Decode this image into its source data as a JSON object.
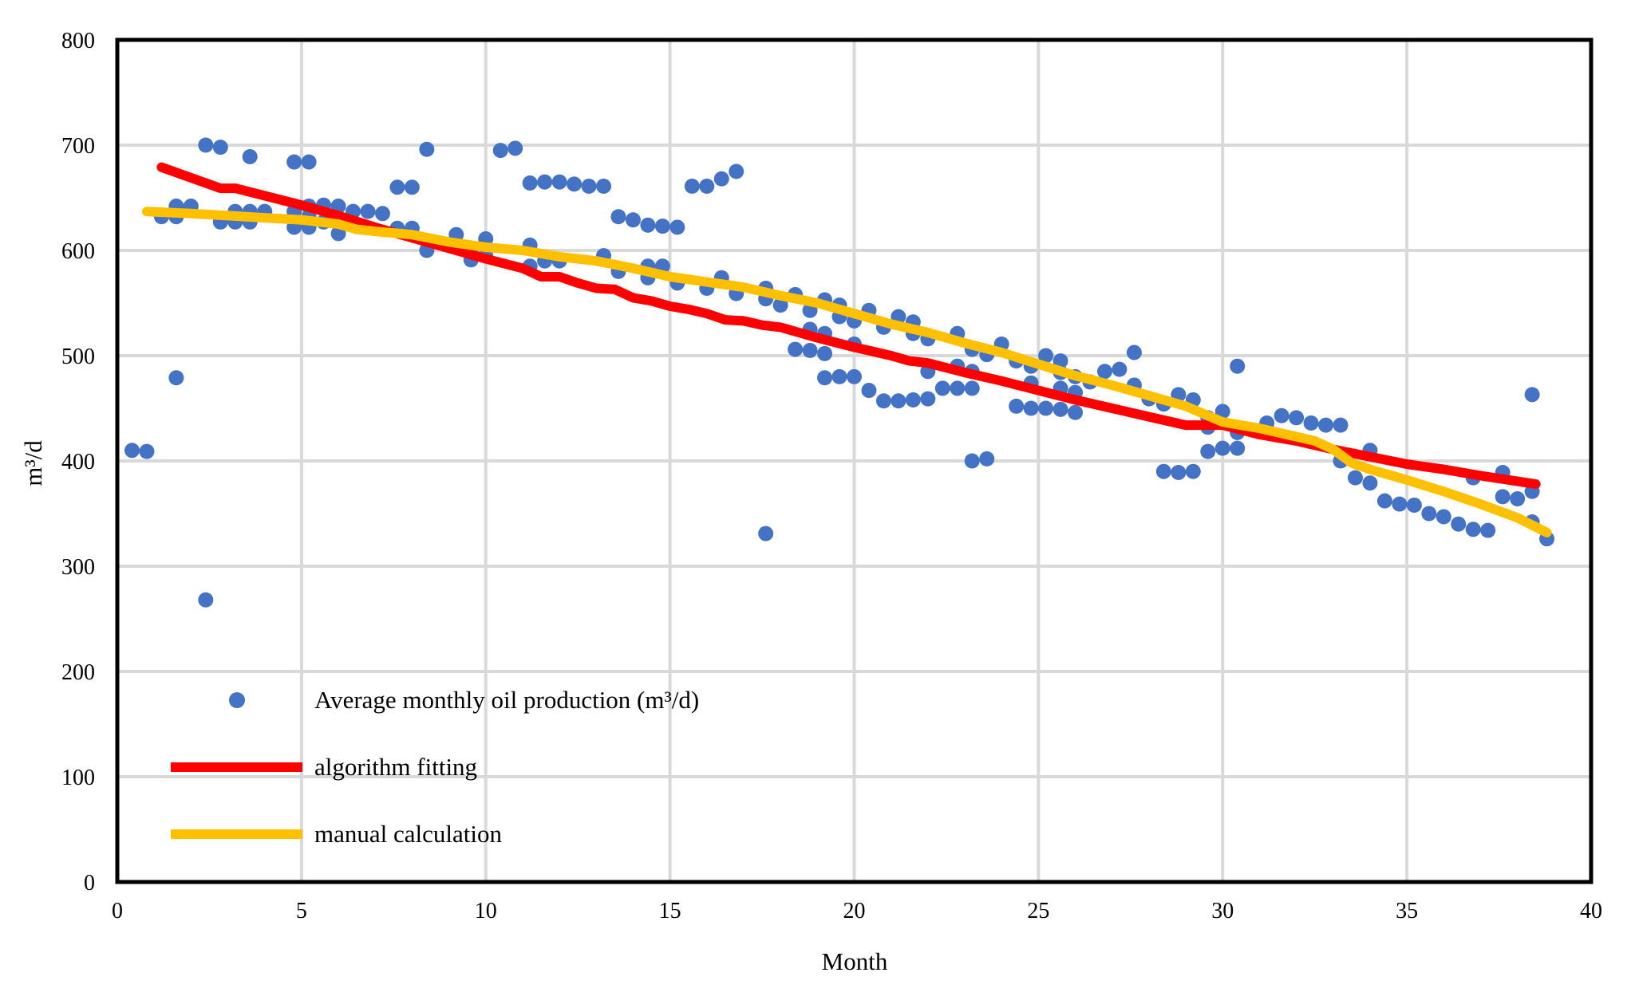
{
  "chart_data": {
    "type": "scatter",
    "title": "",
    "xlabel": "Month",
    "ylabel": "m³/d",
    "xlim": [
      0,
      40
    ],
    "ylim": [
      0,
      800
    ],
    "xticks": [
      0,
      5,
      10,
      15,
      20,
      25,
      30,
      35,
      40
    ],
    "yticks": [
      0,
      100,
      200,
      300,
      400,
      500,
      600,
      700,
      800
    ],
    "grid": true,
    "legend_position": "bottom-left",
    "colors": {
      "scatter": "#4472C4",
      "algorithm": "#FF0000",
      "manual": "#FFC000",
      "grid": "#D9D9D9",
      "axis": "#000000"
    },
    "series": [
      {
        "name": "Average monthly oil production (m³/d)",
        "kind": "scatter",
        "points": [
          [
            0.4,
            410
          ],
          [
            0.8,
            409
          ],
          [
            1.2,
            632
          ],
          [
            1.6,
            632
          ],
          [
            1.6,
            642
          ],
          [
            1.6,
            479
          ],
          [
            2.0,
            642
          ],
          [
            2.4,
            268
          ],
          [
            2.4,
            700
          ],
          [
            2.8,
            698
          ],
          [
            2.8,
            627
          ],
          [
            3.2,
            627
          ],
          [
            3.2,
            637
          ],
          [
            3.6,
            627
          ],
          [
            3.6,
            637
          ],
          [
            3.6,
            689
          ],
          [
            4.0,
            637
          ],
          [
            4.8,
            684
          ],
          [
            4.8,
            622
          ],
          [
            4.8,
            637
          ],
          [
            5.2,
            684
          ],
          [
            5.2,
            622
          ],
          [
            5.2,
            632
          ],
          [
            5.2,
            642
          ],
          [
            5.6,
            627
          ],
          [
            5.6,
            643
          ],
          [
            6.0,
            642
          ],
          [
            6.0,
            616
          ],
          [
            6.4,
            637
          ],
          [
            6.8,
            637
          ],
          [
            7.2,
            635
          ],
          [
            7.6,
            660
          ],
          [
            7.6,
            621
          ],
          [
            8.0,
            660
          ],
          [
            8.0,
            621
          ],
          [
            8.4,
            696
          ],
          [
            8.4,
            600
          ],
          [
            9.2,
            615
          ],
          [
            9.6,
            600
          ],
          [
            9.6,
            591
          ],
          [
            10.0,
            595
          ],
          [
            10.0,
            611
          ],
          [
            10.4,
            695
          ],
          [
            10.8,
            697
          ],
          [
            11.2,
            605
          ],
          [
            11.2,
            585
          ],
          [
            11.2,
            664
          ],
          [
            11.6,
            590
          ],
          [
            11.6,
            665
          ],
          [
            12.0,
            665
          ],
          [
            12.0,
            590
          ],
          [
            12.4,
            663
          ],
          [
            12.8,
            661
          ],
          [
            13.2,
            661
          ],
          [
            13.2,
            595
          ],
          [
            13.6,
            580
          ],
          [
            13.6,
            632
          ],
          [
            14.0,
            629
          ],
          [
            14.4,
            624
          ],
          [
            14.4,
            585
          ],
          [
            14.4,
            574
          ],
          [
            14.8,
            623
          ],
          [
            14.8,
            585
          ],
          [
            15.2,
            622
          ],
          [
            15.2,
            569
          ],
          [
            15.6,
            661
          ],
          [
            16.0,
            661
          ],
          [
            16.0,
            564
          ],
          [
            16.4,
            668
          ],
          [
            16.4,
            574
          ],
          [
            16.8,
            675
          ],
          [
            16.8,
            559
          ],
          [
            17.6,
            564
          ],
          [
            17.6,
            554
          ],
          [
            17.6,
            331
          ],
          [
            18.0,
            548
          ],
          [
            18.4,
            558
          ],
          [
            18.4,
            506
          ],
          [
            18.8,
            543
          ],
          [
            18.8,
            525
          ],
          [
            18.8,
            505
          ],
          [
            19.2,
            553
          ],
          [
            19.2,
            521
          ],
          [
            19.2,
            502
          ],
          [
            19.2,
            479
          ],
          [
            19.6,
            548
          ],
          [
            19.6,
            537
          ],
          [
            19.6,
            480
          ],
          [
            20.0,
            533
          ],
          [
            20.0,
            511
          ],
          [
            20.0,
            480
          ],
          [
            20.4,
            543
          ],
          [
            20.4,
            467
          ],
          [
            20.8,
            527
          ],
          [
            20.8,
            457
          ],
          [
            21.2,
            537
          ],
          [
            21.2,
            457
          ],
          [
            21.6,
            532
          ],
          [
            21.6,
            521
          ],
          [
            21.6,
            458
          ],
          [
            22.0,
            516
          ],
          [
            22.0,
            485
          ],
          [
            22.0,
            459
          ],
          [
            22.4,
            469
          ],
          [
            22.8,
            521
          ],
          [
            22.8,
            490
          ],
          [
            22.8,
            469
          ],
          [
            23.2,
            506
          ],
          [
            23.2,
            485
          ],
          [
            23.2,
            469
          ],
          [
            23.2,
            400
          ],
          [
            23.6,
            501
          ],
          [
            23.6,
            402
          ],
          [
            24.0,
            511
          ],
          [
            24.4,
            495
          ],
          [
            24.4,
            452
          ],
          [
            24.8,
            490
          ],
          [
            24.8,
            474
          ],
          [
            24.8,
            450
          ],
          [
            25.2,
            500
          ],
          [
            25.2,
            450
          ],
          [
            25.6,
            495
          ],
          [
            25.6,
            484
          ],
          [
            25.6,
            469
          ],
          [
            25.6,
            449
          ],
          [
            26.0,
            480
          ],
          [
            26.0,
            465
          ],
          [
            26.0,
            446
          ],
          [
            26.4,
            475
          ],
          [
            26.8,
            485
          ],
          [
            27.2,
            487
          ],
          [
            27.6,
            503
          ],
          [
            27.6,
            472
          ],
          [
            28.0,
            459
          ],
          [
            28.4,
            454
          ],
          [
            28.4,
            390
          ],
          [
            28.8,
            463
          ],
          [
            28.8,
            389
          ],
          [
            29.2,
            458
          ],
          [
            29.2,
            390
          ],
          [
            29.6,
            441
          ],
          [
            29.6,
            432
          ],
          [
            29.6,
            409
          ],
          [
            30.0,
            447
          ],
          [
            30.0,
            412
          ],
          [
            30.4,
            490
          ],
          [
            30.4,
            427
          ],
          [
            30.4,
            412
          ],
          [
            31.2,
            436
          ],
          [
            31.6,
            443
          ],
          [
            32.0,
            441
          ],
          [
            32.4,
            436
          ],
          [
            32.8,
            434
          ],
          [
            33.2,
            434
          ],
          [
            33.2,
            400
          ],
          [
            33.6,
            384
          ],
          [
            34.0,
            410
          ],
          [
            34.0,
            379
          ],
          [
            34.4,
            362
          ],
          [
            34.8,
            359
          ],
          [
            35.2,
            358
          ],
          [
            35.6,
            350
          ],
          [
            36.0,
            347
          ],
          [
            36.4,
            340
          ],
          [
            36.8,
            384
          ],
          [
            36.8,
            335
          ],
          [
            37.2,
            334
          ],
          [
            37.6,
            389
          ],
          [
            37.6,
            366
          ],
          [
            38.0,
            364
          ],
          [
            38.4,
            463
          ],
          [
            38.4,
            371
          ],
          [
            38.4,
            342
          ],
          [
            38.8,
            326
          ]
        ]
      },
      {
        "name": "algorithm fitting",
        "kind": "line",
        "points": [
          [
            1.2,
            679
          ],
          [
            2.8,
            659
          ],
          [
            3.2,
            659
          ],
          [
            4.0,
            652
          ],
          [
            5.0,
            643
          ],
          [
            6.0,
            633
          ],
          [
            7.0,
            622
          ],
          [
            8.0,
            612
          ],
          [
            9.0,
            602
          ],
          [
            10.0,
            592
          ],
          [
            11.0,
            583
          ],
          [
            11.5,
            575
          ],
          [
            12.0,
            575
          ],
          [
            12.5,
            569
          ],
          [
            13.0,
            564
          ],
          [
            13.5,
            563
          ],
          [
            14.0,
            555
          ],
          [
            14.5,
            552
          ],
          [
            15.0,
            547
          ],
          [
            15.5,
            544
          ],
          [
            16.0,
            540
          ],
          [
            16.5,
            534
          ],
          [
            17.0,
            533
          ],
          [
            17.5,
            529
          ],
          [
            18.0,
            527
          ],
          [
            19.0,
            517
          ],
          [
            20.0,
            508
          ],
          [
            21.0,
            500
          ],
          [
            21.5,
            495
          ],
          [
            22.0,
            493
          ],
          [
            23.0,
            484
          ],
          [
            24.0,
            476
          ],
          [
            25.0,
            467
          ],
          [
            26.0,
            458
          ],
          [
            27.0,
            450
          ],
          [
            28.0,
            442
          ],
          [
            29.0,
            434
          ],
          [
            30.0,
            434
          ],
          [
            31.0,
            425
          ],
          [
            32.0,
            419
          ],
          [
            33.0,
            411
          ],
          [
            34.0,
            404
          ],
          [
            35.0,
            397
          ],
          [
            36.0,
            392
          ],
          [
            37.0,
            386
          ],
          [
            38.5,
            378
          ]
        ]
      },
      {
        "name": "manual calculation",
        "kind": "line",
        "points": [
          [
            0.8,
            637
          ],
          [
            2.0,
            635
          ],
          [
            3.0,
            633
          ],
          [
            4.0,
            631
          ],
          [
            5.0,
            629
          ],
          [
            6.0,
            625
          ],
          [
            6.5,
            620
          ],
          [
            7.0,
            618
          ],
          [
            8.0,
            615
          ],
          [
            9.0,
            608
          ],
          [
            10.0,
            603
          ],
          [
            11.0,
            600
          ],
          [
            12.0,
            594
          ],
          [
            13.0,
            590
          ],
          [
            14.0,
            583
          ],
          [
            15.0,
            575
          ],
          [
            16.0,
            570
          ],
          [
            17.0,
            565
          ],
          [
            18.0,
            557
          ],
          [
            19.0,
            550
          ],
          [
            20.0,
            540
          ],
          [
            21.0,
            530
          ],
          [
            22.0,
            522
          ],
          [
            23.0,
            512
          ],
          [
            24.0,
            503
          ],
          [
            25.0,
            492
          ],
          [
            26.0,
            481
          ],
          [
            27.0,
            472
          ],
          [
            28.0,
            462
          ],
          [
            29.0,
            452
          ],
          [
            30.0,
            437
          ],
          [
            31.0,
            431
          ],
          [
            32.0,
            423
          ],
          [
            32.5,
            419
          ],
          [
            33.0,
            411
          ],
          [
            33.5,
            398
          ],
          [
            34.0,
            392
          ],
          [
            35.0,
            382
          ],
          [
            36.0,
            371
          ],
          [
            37.0,
            359
          ],
          [
            38.0,
            346
          ],
          [
            38.8,
            332
          ]
        ]
      }
    ]
  }
}
